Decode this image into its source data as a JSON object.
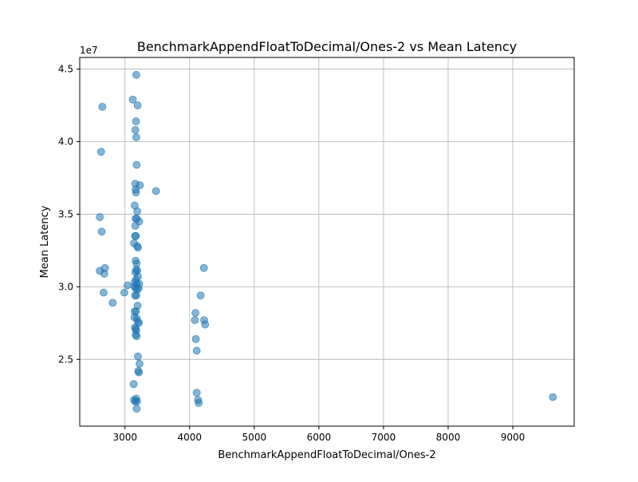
{
  "chart_data": {
    "type": "scatter",
    "title": "BenchmarkAppendFloatToDecimal/Ones-2 vs Mean Latency",
    "xlabel": "BenchmarkAppendFloatToDecimal/Ones-2",
    "ylabel": "Mean Latency",
    "y_offset_label": "1e7",
    "xlim": [
      2300,
      9950
    ],
    "ylim": [
      20400000,
      45800000
    ],
    "x_ticks": [
      3000,
      4000,
      5000,
      6000,
      7000,
      8000,
      9000
    ],
    "x_tick_labels": [
      "3000",
      "4000",
      "5000",
      "6000",
      "7000",
      "8000",
      "9000"
    ],
    "y_ticks": [
      25000000,
      30000000,
      35000000,
      40000000,
      45000000
    ],
    "y_tick_labels": [
      "2.5",
      "3.0",
      "3.5",
      "4.0",
      "4.5"
    ],
    "grid": true,
    "point_color": "#1f77b4",
    "points": [
      [
        3175,
        44600000
      ],
      [
        3120,
        42900000
      ],
      [
        3195,
        42500000
      ],
      [
        2650,
        42400000
      ],
      [
        3170,
        41400000
      ],
      [
        3160,
        40800000
      ],
      [
        3175,
        40300000
      ],
      [
        2630,
        39300000
      ],
      [
        3180,
        38400000
      ],
      [
        3230,
        37000000
      ],
      [
        3160,
        37100000
      ],
      [
        3165,
        36700000
      ],
      [
        3170,
        36500000
      ],
      [
        3480,
        36600000
      ],
      [
        3150,
        35600000
      ],
      [
        3190,
        35200000
      ],
      [
        2610,
        34800000
      ],
      [
        3180,
        34700000
      ],
      [
        3165,
        34700000
      ],
      [
        3220,
        34500000
      ],
      [
        3160,
        34200000
      ],
      [
        2640,
        33800000
      ],
      [
        3170,
        33500000
      ],
      [
        3155,
        33500000
      ],
      [
        3140,
        33000000
      ],
      [
        3190,
        32800000
      ],
      [
        3200,
        32700000
      ],
      [
        3165,
        31800000
      ],
      [
        3180,
        31600000
      ],
      [
        2610,
        31100000
      ],
      [
        2690,
        31300000
      ],
      [
        3175,
        31200000
      ],
      [
        3190,
        31100000
      ],
      [
        2680,
        30900000
      ],
      [
        3160,
        31000000
      ],
      [
        3200,
        30700000
      ],
      [
        3170,
        30500000
      ],
      [
        3150,
        30300000
      ],
      [
        3180,
        30200000
      ],
      [
        3220,
        30200000
      ],
      [
        3040,
        30100000
      ],
      [
        3150,
        30000000
      ],
      [
        3165,
        29900000
      ],
      [
        3190,
        29800000
      ],
      [
        3210,
        29900000
      ],
      [
        2990,
        29600000
      ],
      [
        2670,
        29600000
      ],
      [
        3155,
        29400000
      ],
      [
        3175,
        29400000
      ],
      [
        2810,
        28900000
      ],
      [
        3195,
        28700000
      ],
      [
        3150,
        28300000
      ],
      [
        3170,
        28300000
      ],
      [
        3145,
        27900000
      ],
      [
        3185,
        27800000
      ],
      [
        3200,
        27600000
      ],
      [
        3215,
        27500000
      ],
      [
        3165,
        27100000
      ],
      [
        3175,
        27000000
      ],
      [
        3155,
        27200000
      ],
      [
        3165,
        26700000
      ],
      [
        3180,
        26600000
      ],
      [
        3200,
        25200000
      ],
      [
        3225,
        24700000
      ],
      [
        3205,
        24200000
      ],
      [
        3215,
        24100000
      ],
      [
        3135,
        23300000
      ],
      [
        3175,
        22300000
      ],
      [
        3140,
        22200000
      ],
      [
        3160,
        22100000
      ],
      [
        3185,
        22100000
      ],
      [
        3180,
        21600000
      ],
      [
        4220,
        31300000
      ],
      [
        4170,
        29400000
      ],
      [
        4090,
        28200000
      ],
      [
        4080,
        27700000
      ],
      [
        4225,
        27700000
      ],
      [
        4240,
        27400000
      ],
      [
        4095,
        26400000
      ],
      [
        4110,
        25600000
      ],
      [
        4110,
        22700000
      ],
      [
        4130,
        22200000
      ],
      [
        4140,
        22000000
      ],
      [
        9620,
        22400000
      ]
    ]
  }
}
